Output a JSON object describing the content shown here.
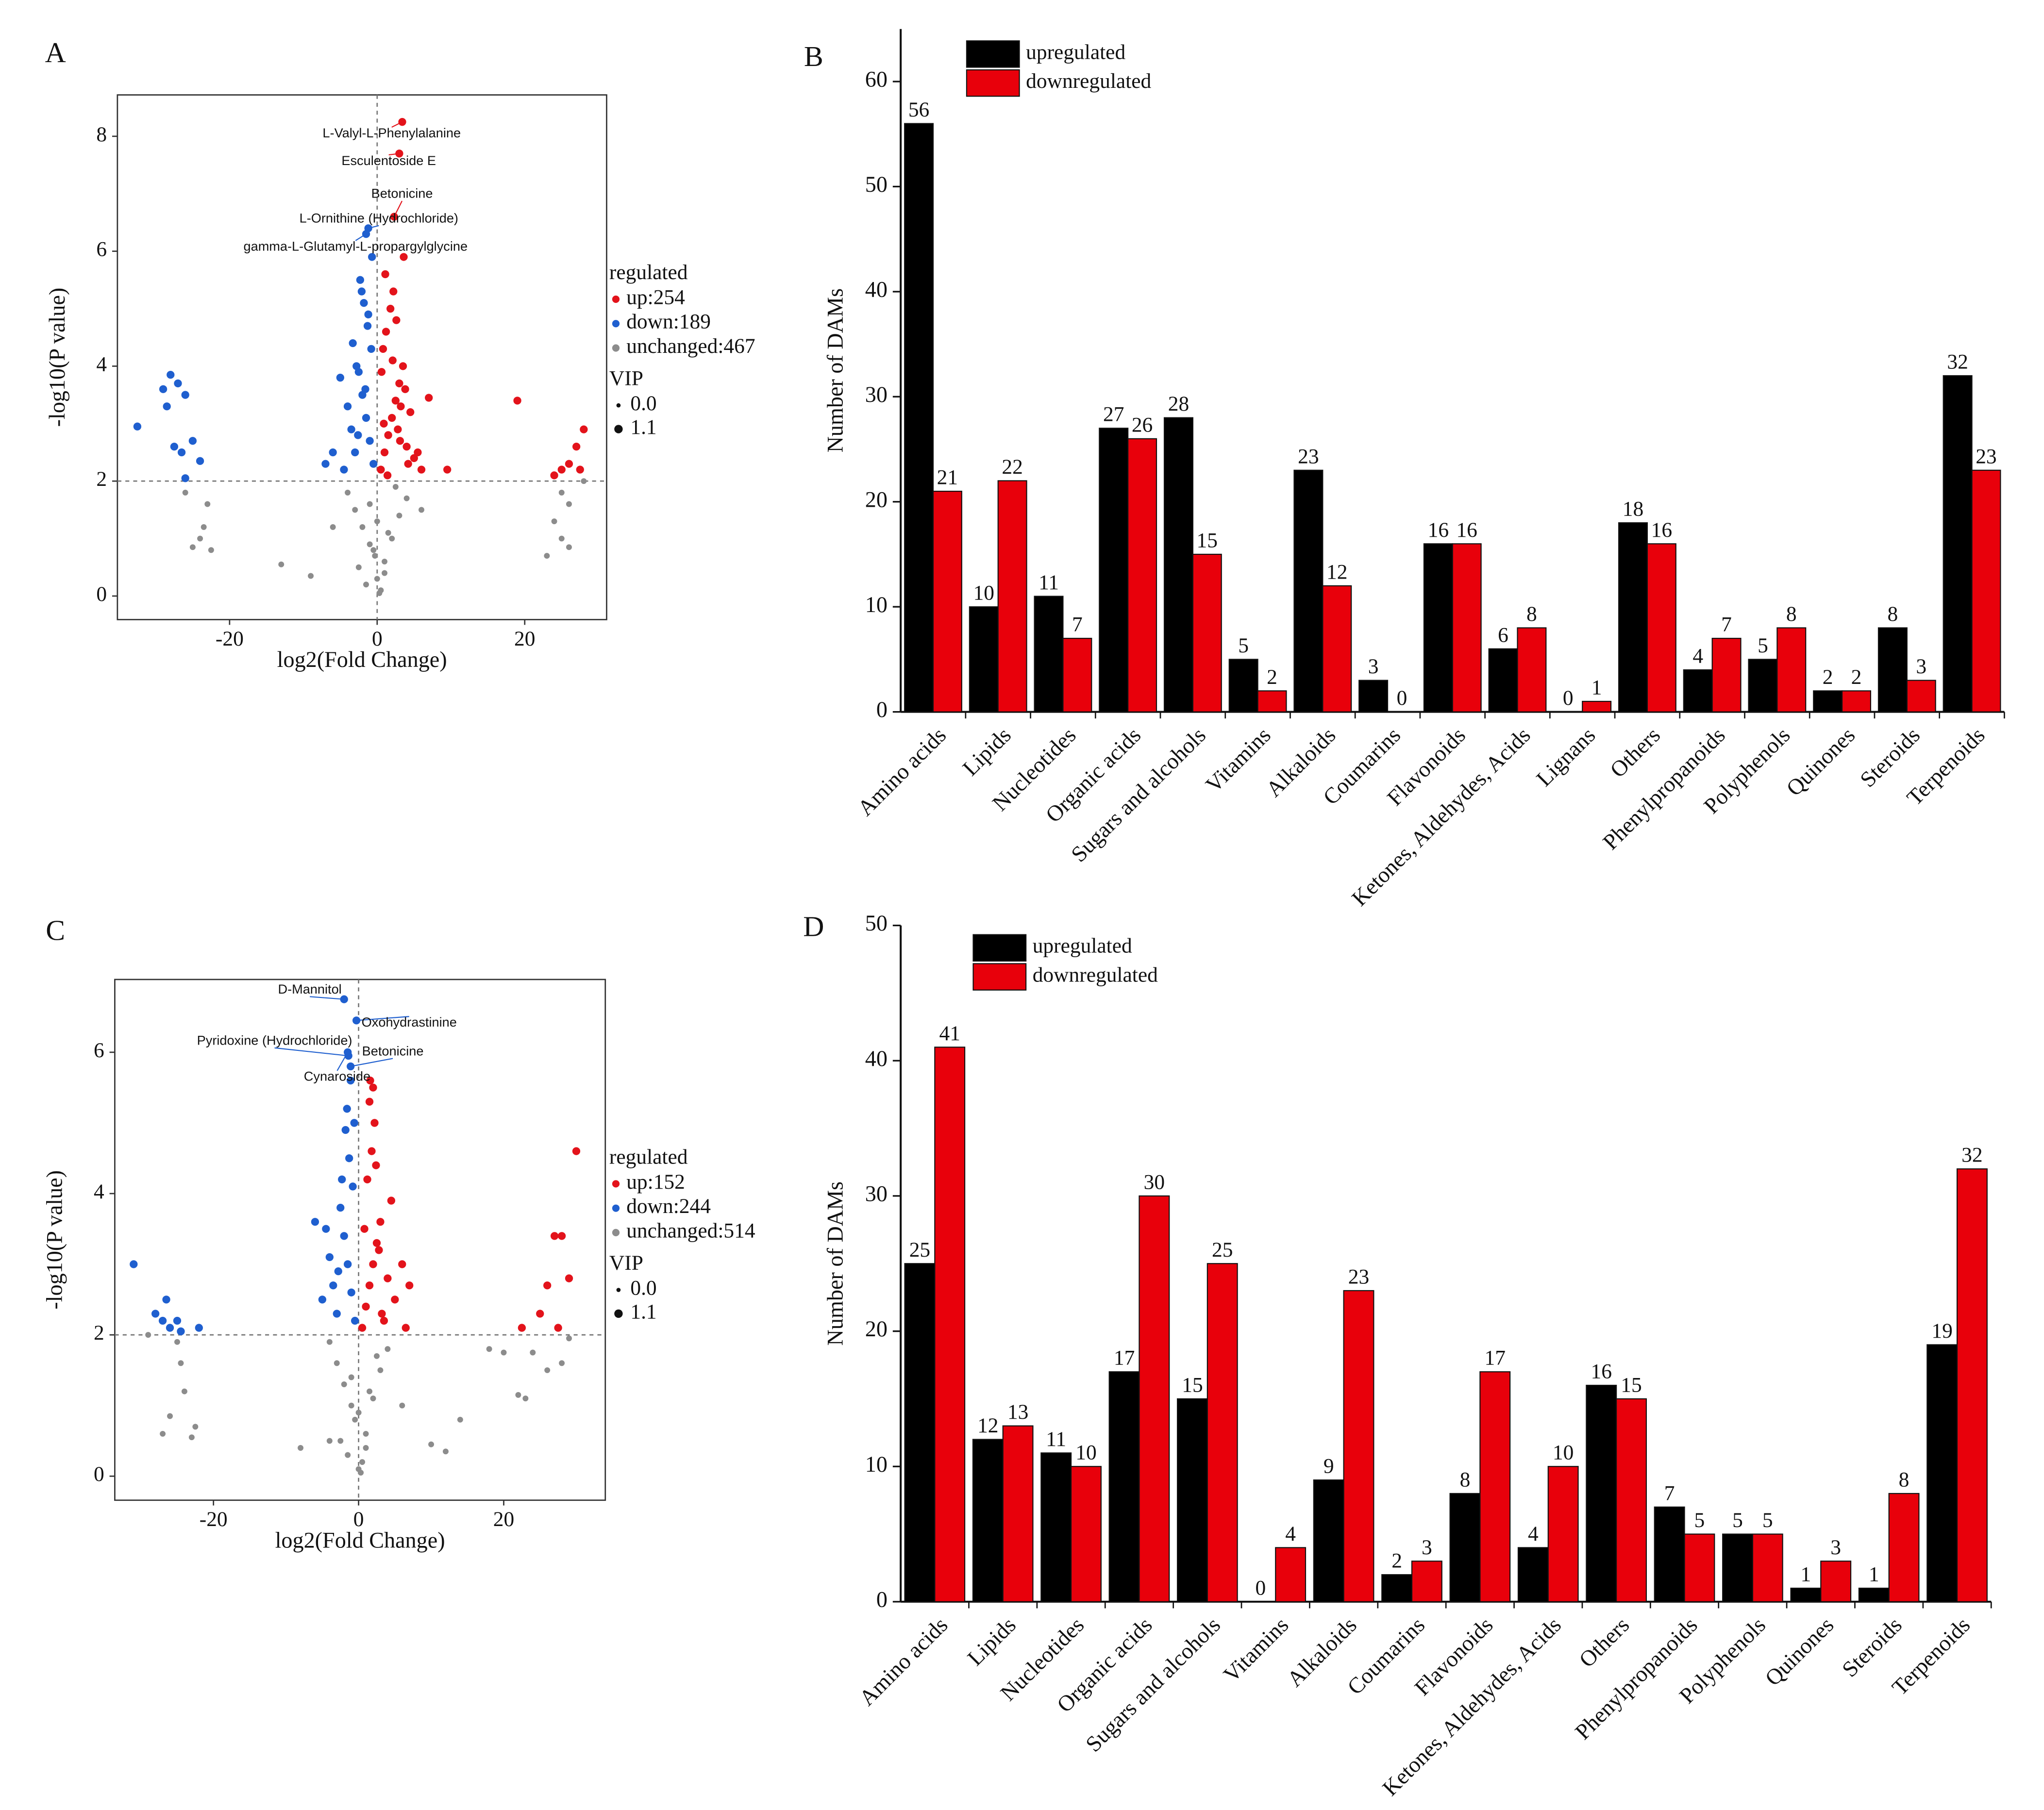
{
  "chart_data": [
    {
      "type": "scatter",
      "panel_label": "A",
      "xlabel": "log2(Fold Change)",
      "ylabel": "-log10(P value)",
      "xlim": [
        -35.2,
        31.1
      ],
      "ylim": [
        -0.41,
        8.72
      ],
      "xticks": [
        -20,
        0,
        20
      ],
      "yticks": [
        0,
        2,
        4,
        6,
        8
      ],
      "reference_lines": {
        "x": 0,
        "y": 2
      },
      "legend_title": "regulated",
      "series": [
        {
          "name": "up:254",
          "color": "#e3131b",
          "x": [
            0.5,
            1,
            1.5,
            2,
            2.5,
            3,
            3.5,
            4,
            4.5,
            5,
            0.8,
            1.2,
            1.8,
            2.2,
            2.8,
            3.2,
            3.8,
            4.2,
            0.6,
            1.4,
            2.6,
            3.6,
            1.1,
            2.1,
            3.1,
            0.9,
            5.5,
            6,
            9.5,
            7,
            19,
            24,
            25,
            26,
            27,
            28,
            27.5,
            3.4,
            3,
            2.3
          ],
          "y": [
            2.2,
            2.5,
            2.8,
            3.1,
            3.4,
            3.7,
            4.0,
            2.6,
            3.2,
            2.4,
            4.3,
            4.6,
            5.0,
            5.3,
            2.9,
            3.3,
            3.6,
            2.3,
            3.9,
            2.1,
            4.8,
            5.9,
            5.6,
            4.1,
            2.7,
            3.0,
            2.5,
            2.2,
            2.2,
            3.45,
            3.4,
            2.1,
            2.2,
            2.3,
            2.6,
            2.9,
            2.2,
            8.25,
            7.7,
            6.6
          ]
        },
        {
          "name": "down:189",
          "color": "#1f5fcf",
          "x": [
            -0.5,
            -1,
            -1.5,
            -2,
            -2.5,
            -3,
            -3.5,
            -4,
            -4.5,
            -5,
            -0.8,
            -1.3,
            -1.8,
            -2.3,
            -2.8,
            -3.3,
            -6,
            -7,
            -0.7,
            -1.6,
            -2.6,
            -1.2,
            -2.1,
            -32.5,
            -29,
            -28,
            -27,
            -26,
            -28.5,
            -27.5,
            -26.5,
            -25,
            -24,
            -26,
            -1.5,
            -1.2
          ],
          "y": [
            2.3,
            2.7,
            3.1,
            3.5,
            3.9,
            2.5,
            2.9,
            3.3,
            2.2,
            3.8,
            4.3,
            4.7,
            5.1,
            5.5,
            4.0,
            4.4,
            2.5,
            2.3,
            5.9,
            3.6,
            2.8,
            4.9,
            5.3,
            2.95,
            3.6,
            3.85,
            3.7,
            3.5,
            3.3,
            2.6,
            2.5,
            2.7,
            2.35,
            2.05,
            6.3,
            6.4
          ]
        },
        {
          "name": "unchanged:467",
          "color": "#8c8c8c",
          "x": [
            -4,
            -3,
            -2,
            -1,
            0,
            1,
            2,
            3,
            4,
            -2.5,
            -1.5,
            -0.5,
            0.5,
            1.5,
            2.5,
            -1,
            0,
            1,
            -0.3,
            0.3,
            -6,
            6,
            -26,
            -23,
            -23.5,
            -24,
            -25,
            -22.5,
            -13,
            -9,
            25,
            26,
            24,
            25,
            23,
            26,
            28
          ],
          "y": [
            1.8,
            1.5,
            1.2,
            0.9,
            0.3,
            0.6,
            1.0,
            1.4,
            1.7,
            0.5,
            0.2,
            0.8,
            0.1,
            1.1,
            1.9,
            1.6,
            1.3,
            0.4,
            0.7,
            0.05,
            1.2,
            1.5,
            1.8,
            1.6,
            1.2,
            1.0,
            0.85,
            0.8,
            0.55,
            0.35,
            1.8,
            1.6,
            1.3,
            1.0,
            0.7,
            0.85,
            2.0
          ]
        }
      ],
      "size_legend": {
        "title": "VIP",
        "values": [
          {
            "value": 0,
            "label": "0.0"
          },
          1.1
        ]
      },
      "annotations": [
        {
          "text": "L-Valyl-L-Phenylalanine",
          "x": 3.4,
          "y": 8.25,
          "color": "#e3131b"
        },
        {
          "text": "Esculentoside E",
          "x": 3,
          "y": 7.7,
          "color": "#e3131b"
        },
        {
          "text": "Betonicine",
          "x": 2.3,
          "y": 6.6,
          "color": "#e3131b"
        },
        {
          "text": "L-Ornithine (Hydrochloride)",
          "x": -1.2,
          "y": 6.4,
          "color": "#1f5fcf"
        },
        {
          "text": "gamma-L-Glutamyl-L-propargylglycine",
          "x": -1.5,
          "y": 6.3,
          "color": "#1f5fcf"
        }
      ]
    },
    {
      "type": "bar",
      "panel_label": "B",
      "ylabel": "Number of DAMs",
      "categories": [
        "Amino acids",
        "Lipids",
        "Nucleotides",
        "Organic acids",
        "Sugars and alcohols",
        "Vitamins",
        "Alkaloids",
        "Coumarins",
        "Flavonoids",
        "Ketones, Aldehydes, Acids",
        "Lignans",
        "Others",
        "Phenylpropanoids",
        "Polyphenols",
        "Quinones",
        "Steroids",
        "Terpenoids"
      ],
      "series": [
        {
          "name": "upregulated",
          "color": "#000000",
          "values": [
            56,
            10,
            11,
            27,
            28,
            5,
            23,
            3,
            16,
            6,
            0,
            18,
            4,
            5,
            2,
            8,
            32
          ]
        },
        {
          "name": "downregulated",
          "color": "#e8000b",
          "values": [
            21,
            22,
            7,
            26,
            15,
            2,
            12,
            0,
            16,
            8,
            1,
            16,
            7,
            8,
            2,
            3,
            23
          ]
        }
      ],
      "ylim": [
        0,
        65
      ],
      "yticks": [
        0,
        10,
        20,
        30,
        40,
        50,
        60
      ],
      "legend": "upper left"
    },
    {
      "type": "scatter",
      "panel_label": "C",
      "xlabel": "log2(Fold Change)",
      "ylabel": "-log10(P value)",
      "xlim": [
        -33.6,
        34
      ],
      "ylim": [
        -0.34,
        7.03
      ],
      "xticks": [
        -20,
        0,
        20
      ],
      "yticks": [
        0,
        2,
        4,
        6
      ],
      "reference_lines": {
        "x": 0,
        "y": 2
      },
      "legend_title": "regulated",
      "series": [
        {
          "name": "up:152",
          "color": "#e3131b",
          "x": [
            0.5,
            1,
            1.5,
            2,
            2.5,
            3,
            3.5,
            4,
            4.5,
            5,
            1.2,
            1.8,
            2.2,
            2.8,
            3.2,
            0.8,
            1.6,
            2.4,
            6,
            7,
            6.5,
            1.5,
            2,
            22.5,
            25,
            26,
            27,
            28,
            27.5,
            29,
            30
          ],
          "y": [
            2.1,
            2.4,
            2.7,
            3.0,
            3.3,
            3.6,
            2.2,
            2.8,
            3.9,
            2.5,
            4.2,
            4.6,
            5.0,
            3.2,
            2.3,
            3.5,
            5.6,
            4.4,
            3.0,
            2.7,
            2.1,
            5.3,
            5.5,
            2.1,
            2.3,
            2.7,
            3.4,
            3.4,
            2.1,
            2.8,
            4.6
          ]
        },
        {
          "name": "down:244",
          "color": "#1f5fcf",
          "x": [
            -0.5,
            -1,
            -1.5,
            -2,
            -2.5,
            -3,
            -3.5,
            -4,
            -4.5,
            -5,
            -6,
            -0.8,
            -1.3,
            -1.8,
            -2.3,
            -2.8,
            -0.6,
            -1.1,
            -1.6,
            -31,
            -28,
            -27,
            -26.5,
            -26,
            -25,
            -24.5,
            -22,
            -2,
            -0.3,
            -1.4,
            -1.1,
            -1.5
          ],
          "y": [
            2.2,
            2.6,
            3.0,
            3.4,
            3.8,
            2.3,
            2.7,
            3.1,
            3.5,
            2.5,
            3.6,
            4.1,
            4.5,
            4.9,
            4.2,
            2.9,
            5.0,
            5.6,
            5.2,
            3.0,
            2.3,
            2.2,
            2.5,
            2.1,
            2.2,
            2.05,
            2.1,
            6.75,
            6.45,
            5.95,
            5.8,
            6.0
          ]
        },
        {
          "name": "unchanged:514",
          "color": "#8c8c8c",
          "x": [
            -4,
            -3,
            -2,
            -1,
            0,
            1,
            2,
            3,
            4,
            -2.5,
            -1.5,
            -0.5,
            0.5,
            1.5,
            2.5,
            -1,
            0,
            1,
            0.3,
            6,
            -29,
            -25,
            -24.5,
            -24,
            -26,
            -23,
            -22.5,
            -27,
            -8,
            -4,
            14,
            10,
            12,
            18,
            20,
            22,
            23,
            24,
            26,
            28,
            29
          ],
          "y": [
            1.9,
            1.6,
            1.3,
            1.0,
            0.1,
            0.6,
            1.1,
            1.5,
            1.8,
            0.5,
            0.3,
            0.8,
            0.2,
            1.2,
            1.7,
            1.4,
            0.9,
            0.4,
            0.05,
            1.0,
            2.0,
            1.9,
            1.6,
            1.2,
            0.85,
            0.55,
            0.7,
            0.6,
            0.4,
            0.5,
            0.8,
            0.45,
            0.35,
            1.8,
            1.75,
            1.15,
            1.1,
            1.75,
            1.5,
            1.6,
            1.95
          ]
        }
      ],
      "size_legend": {
        "title": "VIP",
        "values": [
          {
            "value": 0,
            "label": "0.0"
          },
          1.1
        ]
      },
      "annotations": [
        {
          "text": "D-Mannitol",
          "x": -2,
          "y": 6.75,
          "color": "#1f5fcf"
        },
        {
          "text": "Oxohydrastinine",
          "x": -0.3,
          "y": 6.45,
          "color": "#1f5fcf"
        },
        {
          "text": "Pyridoxine (Hydrochloride)",
          "x": -1.4,
          "y": 5.95,
          "color": "#1f5fcf"
        },
        {
          "text": "Betonicine",
          "x": -1.1,
          "y": 5.8,
          "color": "#1f5fcf"
        },
        {
          "text": "Cynaroside",
          "x": -1.5,
          "y": 6.0,
          "color": "#1f5fcf"
        }
      ]
    },
    {
      "type": "bar",
      "panel_label": "D",
      "ylabel": "Number of DAMs",
      "categories": [
        "Amino acids",
        "Lipids",
        "Nucleotides",
        "Organic acids",
        "Sugars and alcohols",
        "Vitamins",
        "Alkaloids",
        "Coumarins",
        "Flavonoids",
        "Ketones, Aldehydes, Acids",
        "Others",
        "Phenylpropanoids",
        "Polyphenols",
        "Quinones",
        "Steroids",
        "Terpenoids"
      ],
      "series": [
        {
          "name": "upregulated",
          "color": "#000000",
          "values": [
            25,
            12,
            11,
            17,
            15,
            0,
            9,
            2,
            8,
            4,
            16,
            7,
            5,
            1,
            1,
            19
          ]
        },
        {
          "name": "downregulated",
          "color": "#e8000b",
          "values": [
            41,
            13,
            10,
            30,
            25,
            4,
            23,
            3,
            17,
            10,
            15,
            5,
            5,
            3,
            8,
            32
          ]
        }
      ],
      "ylim": [
        0,
        50
      ],
      "yticks": [
        0,
        10,
        20,
        30,
        40,
        50
      ],
      "legend": "upper left"
    }
  ]
}
